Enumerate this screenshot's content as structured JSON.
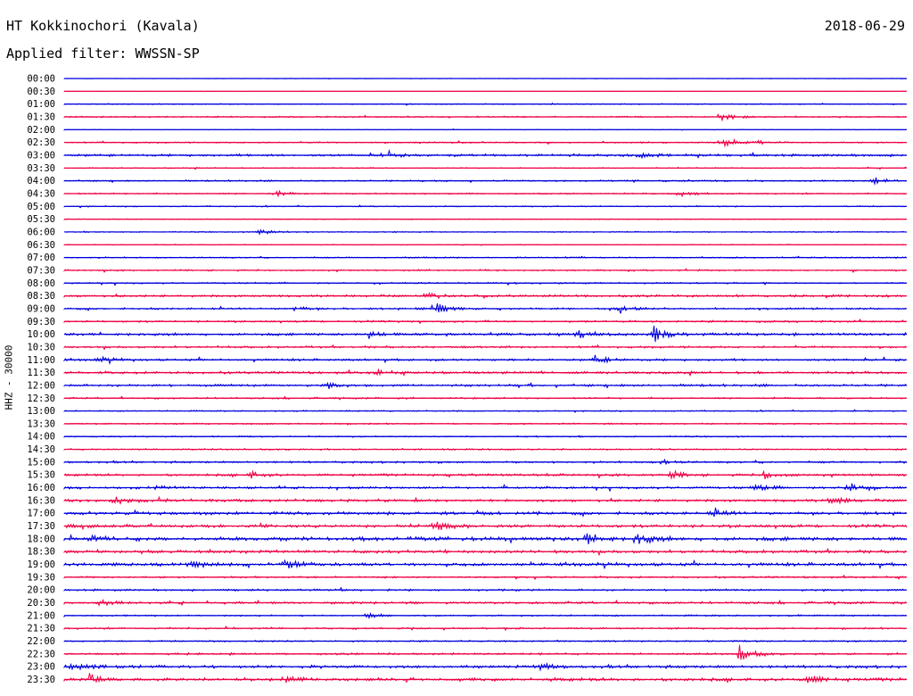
{
  "header": {
    "station": "HT Kokkinochori (Kavala)",
    "date": "2018-06-29",
    "filter": "Applied filter: WWSSN-SP"
  },
  "chart_data": {
    "type": "line",
    "title": "HT Kokkinochori (Kavala)",
    "ylabel": "HHZ - 30000",
    "colors": {
      "even_rows": "#0000dd",
      "odd_rows": "#ee0044"
    },
    "rows": [
      "00:00",
      "00:30",
      "01:00",
      "01:30",
      "02:00",
      "02:30",
      "03:00",
      "03:30",
      "04:00",
      "04:30",
      "05:00",
      "05:30",
      "06:00",
      "06:30",
      "07:00",
      "07:30",
      "08:00",
      "08:30",
      "09:00",
      "09:30",
      "10:00",
      "10:30",
      "11:00",
      "11:30",
      "12:00",
      "12:30",
      "13:00",
      "13:30",
      "14:00",
      "14:30",
      "15:00",
      "15:30",
      "16:00",
      "16:30",
      "17:00",
      "17:30",
      "18:00",
      "18:30",
      "19:00",
      "19:30",
      "20:00",
      "20:30",
      "21:00",
      "21:30",
      "22:00",
      "22:30",
      "23:00",
      "23:30"
    ],
    "noise_level": [
      0.2,
      0.2,
      0.6,
      0.9,
      0.4,
      0.9,
      1.6,
      0.7,
      1.0,
      0.9,
      0.8,
      0.5,
      0.7,
      0.6,
      0.9,
      1.0,
      1.0,
      1.5,
      1.3,
      1.3,
      1.8,
      1.4,
      1.5,
      1.6,
      1.6,
      1.1,
      0.8,
      1.0,
      0.9,
      1.0,
      1.4,
      1.6,
      1.5,
      1.8,
      2.0,
      2.1,
      2.6,
      2.0,
      2.2,
      1.2,
      1.3,
      1.5,
      1.0,
      1.2,
      1.0,
      1.3,
      2.0,
      2.2
    ],
    "events": [
      {
        "row": "01:30",
        "x": 0.78,
        "amp": 6
      },
      {
        "row": "02:30",
        "x": 0.78,
        "amp": 5
      },
      {
        "row": "02:30",
        "x": 0.82,
        "amp": 3
      },
      {
        "row": "03:00",
        "x": 0.38,
        "amp": 3
      },
      {
        "row": "03:00",
        "x": 0.68,
        "amp": 3
      },
      {
        "row": "04:00",
        "x": 0.96,
        "amp": 4
      },
      {
        "row": "04:30",
        "x": 0.25,
        "amp": 3
      },
      {
        "row": "04:30",
        "x": 0.73,
        "amp": 3
      },
      {
        "row": "06:00",
        "x": 0.23,
        "amp": 3
      },
      {
        "row": "08:30",
        "x": 0.43,
        "amp": 3
      },
      {
        "row": "09:00",
        "x": 0.44,
        "amp": 6
      },
      {
        "row": "09:00",
        "x": 0.66,
        "amp": 5
      },
      {
        "row": "09:00",
        "x": 0.27,
        "amp": 3
      },
      {
        "row": "10:00",
        "x": 0.36,
        "amp": 5
      },
      {
        "row": "10:00",
        "x": 0.61,
        "amp": 4
      },
      {
        "row": "10:00",
        "x": 0.7,
        "amp": 9
      },
      {
        "row": "11:00",
        "x": 0.04,
        "amp": 3
      },
      {
        "row": "11:00",
        "x": 0.63,
        "amp": 5
      },
      {
        "row": "11:30",
        "x": 0.37,
        "amp": 3
      },
      {
        "row": "12:00",
        "x": 0.31,
        "amp": 3
      },
      {
        "row": "15:00",
        "x": 0.71,
        "amp": 3
      },
      {
        "row": "15:30",
        "x": 0.22,
        "amp": 4
      },
      {
        "row": "15:30",
        "x": 0.72,
        "amp": 4
      },
      {
        "row": "15:30",
        "x": 0.83,
        "amp": 4
      },
      {
        "row": "16:00",
        "x": 0.11,
        "amp": 3
      },
      {
        "row": "16:00",
        "x": 0.93,
        "amp": 7
      },
      {
        "row": "16:00",
        "x": 0.82,
        "amp": 4
      },
      {
        "row": "16:30",
        "x": 0.06,
        "amp": 4
      },
      {
        "row": "16:30",
        "x": 0.91,
        "amp": 5
      },
      {
        "row": "17:00",
        "x": 0.77,
        "amp": 4
      },
      {
        "row": "17:30",
        "x": 0.44,
        "amp": 5
      },
      {
        "row": "18:00",
        "x": 0.62,
        "amp": 6
      },
      {
        "row": "18:00",
        "x": 0.68,
        "amp": 7
      },
      {
        "row": "18:00",
        "x": 0.03,
        "amp": 3
      },
      {
        "row": "19:00",
        "x": 0.15,
        "amp": 5
      },
      {
        "row": "19:00",
        "x": 0.26,
        "amp": 6
      },
      {
        "row": "20:30",
        "x": 0.04,
        "amp": 4
      },
      {
        "row": "21:00",
        "x": 0.36,
        "amp": 3
      },
      {
        "row": "22:30",
        "x": 0.8,
        "amp": 10
      },
      {
        "row": "23:00",
        "x": 0.56,
        "amp": 4
      },
      {
        "row": "23:00",
        "x": 0.01,
        "amp": 4
      },
      {
        "row": "23:30",
        "x": 0.03,
        "amp": 5
      },
      {
        "row": "23:30",
        "x": 0.26,
        "amp": 4
      },
      {
        "row": "23:30",
        "x": 0.88,
        "amp": 6
      }
    ]
  }
}
